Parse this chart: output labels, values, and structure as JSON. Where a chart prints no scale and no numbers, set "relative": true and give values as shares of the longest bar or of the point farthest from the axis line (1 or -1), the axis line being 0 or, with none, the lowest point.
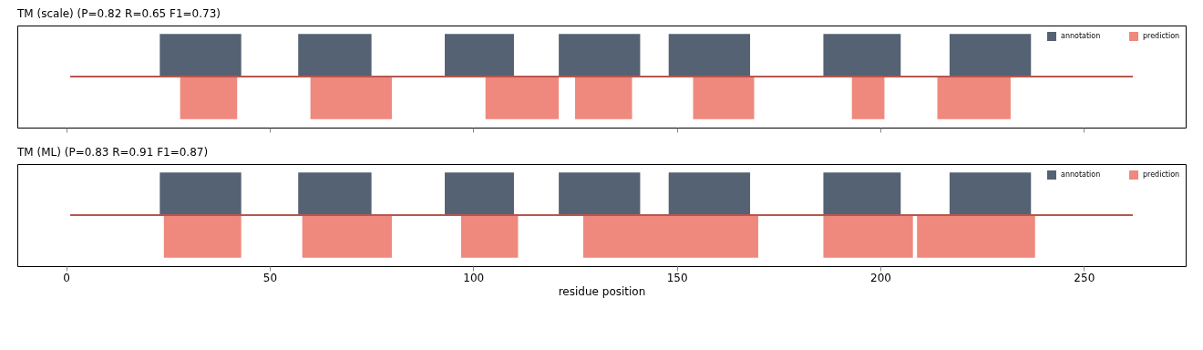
{
  "chart_data": [
    {
      "type": "area",
      "relative": true,
      "title": "TM (scale)  (P=0.82 R=0.65 F1=0.73)",
      "legend": "top right",
      "grid": false,
      "tick_labels": false,
      "xlim": [
        -12,
        275
      ],
      "xticks": [
        0,
        50,
        100,
        150,
        200,
        250
      ],
      "series": [
        {
          "name": "annotation",
          "color": "#4b5a6b",
          "x": [
            23,
            43,
            57,
            75,
            93,
            110,
            121,
            141,
            148,
            168,
            186,
            205,
            217,
            237
          ],
          "values": [
            1,
            0,
            1,
            0,
            1,
            0,
            1,
            0,
            1,
            0,
            1,
            0,
            1,
            0
          ]
        },
        {
          "name": "prediction",
          "color": "#ee8376",
          "x": [
            28,
            42,
            60,
            80,
            103,
            121,
            125,
            139,
            154,
            169,
            193,
            201,
            214,
            232
          ],
          "values": [
            -1,
            0,
            -1,
            0,
            -1,
            0,
            -1,
            0,
            -1,
            0,
            -1,
            0,
            -1,
            0
          ]
        },
        {
          "type": "line",
          "color": "#b5574f",
          "x": [
            1,
            262
          ],
          "values": [
            0,
            0
          ]
        }
      ]
    },
    {
      "type": "area",
      "relative": true,
      "title": "TM (ML)  (P=0.83 R=0.91 F1=0.87)",
      "xlabel": "residue position",
      "legend": "top right",
      "grid": false,
      "tick_labels": "x",
      "xlim": [
        -12,
        275
      ],
      "xticks": [
        0,
        50,
        100,
        150,
        200,
        250
      ],
      "series": [
        {
          "name": "annotation",
          "color": "#4b5a6b",
          "x": [
            23,
            43,
            57,
            75,
            93,
            110,
            121,
            141,
            148,
            168,
            186,
            205,
            217,
            237
          ],
          "values": [
            1,
            0,
            1,
            0,
            1,
            0,
            1,
            0,
            1,
            0,
            1,
            0,
            1,
            0
          ]
        },
        {
          "name": "prediction",
          "color": "#ee8376",
          "x": [
            24,
            43,
            58,
            80,
            97,
            111,
            127,
            170,
            186,
            208,
            209,
            238
          ],
          "values": [
            -1,
            0,
            -1,
            0,
            -1,
            0,
            -1,
            0,
            -1,
            0,
            -1,
            0
          ]
        },
        {
          "type": "line",
          "color": "#b5574f",
          "x": [
            1,
            262
          ],
          "values": [
            0,
            0
          ]
        }
      ]
    }
  ]
}
